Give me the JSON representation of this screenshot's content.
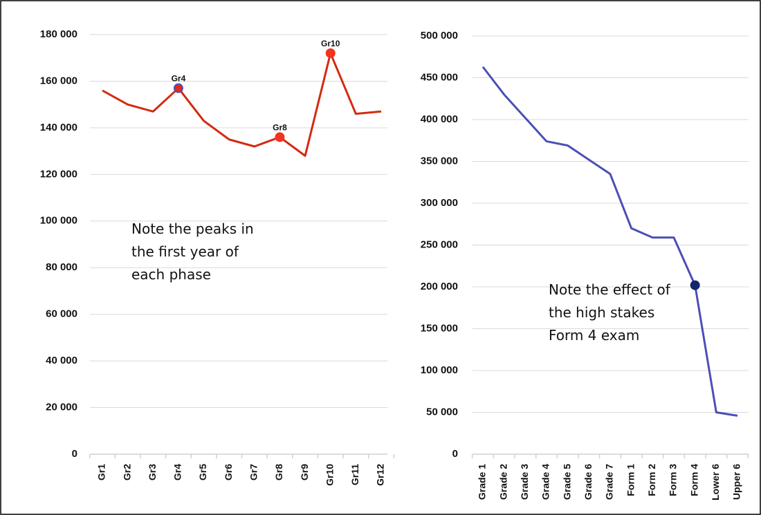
{
  "chart_data": [
    {
      "type": "line",
      "categories": [
        "Gr1",
        "Gr2",
        "Gr3",
        "Gr4",
        "Gr5",
        "Gr6",
        "Gr7",
        "Gr8",
        "Gr9",
        "Gr10",
        "Gr11",
        "Gr12"
      ],
      "series": [
        {
          "color": "#d42a10",
          "values": [
            156000,
            150000,
            147000,
            157000,
            143000,
            135000,
            132000,
            136000,
            128000,
            172000,
            146000,
            147000
          ]
        }
      ],
      "ylim": [
        0,
        180000
      ],
      "yticks": [
        0,
        {
          "value": 20000,
          "label": "20 000"
        },
        {
          "value": 40000,
          "label": "40 000"
        },
        {
          "value": 60000,
          "label": "60 000"
        },
        {
          "value": 80000,
          "label": "80 000"
        },
        {
          "value": 100000,
          "label": "100 000"
        },
        {
          "value": 120000,
          "label": "120 000"
        },
        {
          "value": 140000,
          "label": "140 000"
        },
        {
          "value": 160000,
          "label": "160 000"
        },
        {
          "value": 180000,
          "label": "180 000"
        }
      ],
      "grid": true,
      "highlights": [
        {
          "index": 3,
          "label": "Gr4",
          "color": "#e8261b",
          "edge": "#4a4fb5"
        },
        {
          "index": 7,
          "label": "Gr8",
          "color": "#f2331f",
          "edge": "#f2331f"
        },
        {
          "index": 9,
          "label": "Gr10",
          "color": "#f2331f",
          "edge": "#f2331f"
        }
      ],
      "note": [
        "Note the peaks in",
        "the first year of",
        "each phase"
      ]
    },
    {
      "type": "line",
      "categories": [
        "Grade 1",
        "Grade 2",
        "Grade 3",
        "Grade 4",
        "Grade 5",
        "Grade 6",
        "Grade 7",
        "Form 1",
        "Form 2",
        "Form 3",
        "Form 4",
        "Lower 6",
        "Upper 6"
      ],
      "series": [
        {
          "color": "#4a4fb5",
          "values": [
            463000,
            430000,
            402000,
            374000,
            369000,
            352000,
            335000,
            270000,
            259000,
            259000,
            202000,
            50000,
            46000
          ]
        }
      ],
      "ylim": [
        0,
        500000
      ],
      "yticks": [
        0,
        {
          "value": 50000,
          "label": "50 000"
        },
        {
          "value": 100000,
          "label": "100 000"
        },
        {
          "value": 150000,
          "label": "150 000"
        },
        {
          "value": 200000,
          "label": "200 000"
        },
        {
          "value": 250000,
          "label": "250 000"
        },
        {
          "value": 300000,
          "label": "300 000"
        },
        {
          "value": 350000,
          "label": "350 000"
        },
        {
          "value": 400000,
          "label": "400 000"
        },
        {
          "value": 450000,
          "label": "450 000"
        },
        {
          "value": 500000,
          "label": "500 000"
        }
      ],
      "grid": true,
      "highlights": [
        {
          "index": 10,
          "color": "#14256b",
          "edge": "#14256b"
        }
      ],
      "note": [
        "Note the effect of",
        "the high stakes",
        "Form 4 exam"
      ]
    }
  ]
}
